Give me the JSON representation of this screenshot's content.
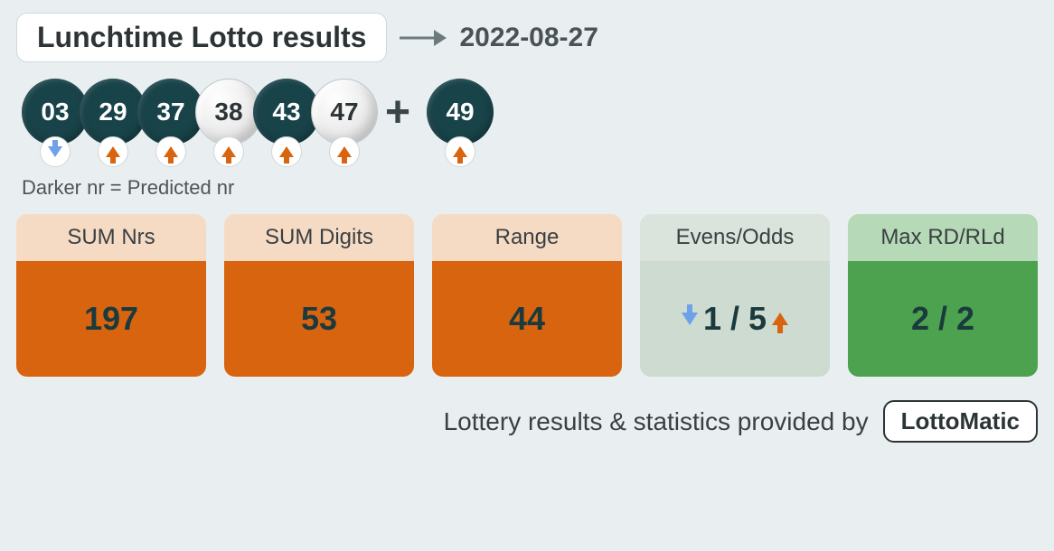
{
  "header": {
    "title": "Lunchtime Lotto results",
    "date": "2022-08-27"
  },
  "colors": {
    "page_bg": "#e9eef1",
    "ball_dark": "#184349",
    "ball_light_bg": "#f0f0f0",
    "trend_up": "#d8640f",
    "trend_down": "#6da2e8",
    "card_orange_header": "#f6dbc4",
    "card_orange_body": "#d8640f",
    "card_greenlt_header": "#dbe4dc",
    "card_greenlt_body": "#cedbd0",
    "card_green_header": "#b6dab7",
    "card_green_body": "#4ca24f"
  },
  "balls": [
    {
      "value": "03",
      "predicted": true,
      "trend": "down"
    },
    {
      "value": "29",
      "predicted": true,
      "trend": "up"
    },
    {
      "value": "37",
      "predicted": true,
      "trend": "up"
    },
    {
      "value": "38",
      "predicted": false,
      "trend": "up"
    },
    {
      "value": "43",
      "predicted": true,
      "trend": "up"
    },
    {
      "value": "47",
      "predicted": false,
      "trend": "up"
    }
  ],
  "bonus": {
    "value": "49",
    "predicted": true,
    "trend": "up"
  },
  "legend": "Darker nr = Predicted nr",
  "stats": {
    "sum_nrs": {
      "label": "SUM Nrs",
      "value": "197",
      "variant": "orange"
    },
    "sum_digits": {
      "label": "SUM Digits",
      "value": "53",
      "variant": "orange"
    },
    "range": {
      "label": "Range",
      "value": "44",
      "variant": "orange"
    },
    "evens_odds": {
      "label": "Evens/Odds",
      "left_trend": "down",
      "value": "1 / 5",
      "right_trend": "up",
      "variant": "green-lt"
    },
    "max_rd": {
      "label": "Max RD/RLd",
      "value": "2 / 2",
      "variant": "green"
    }
  },
  "footer": {
    "text": "Lottery results & statistics provided by",
    "brand": "LottoMatic"
  }
}
